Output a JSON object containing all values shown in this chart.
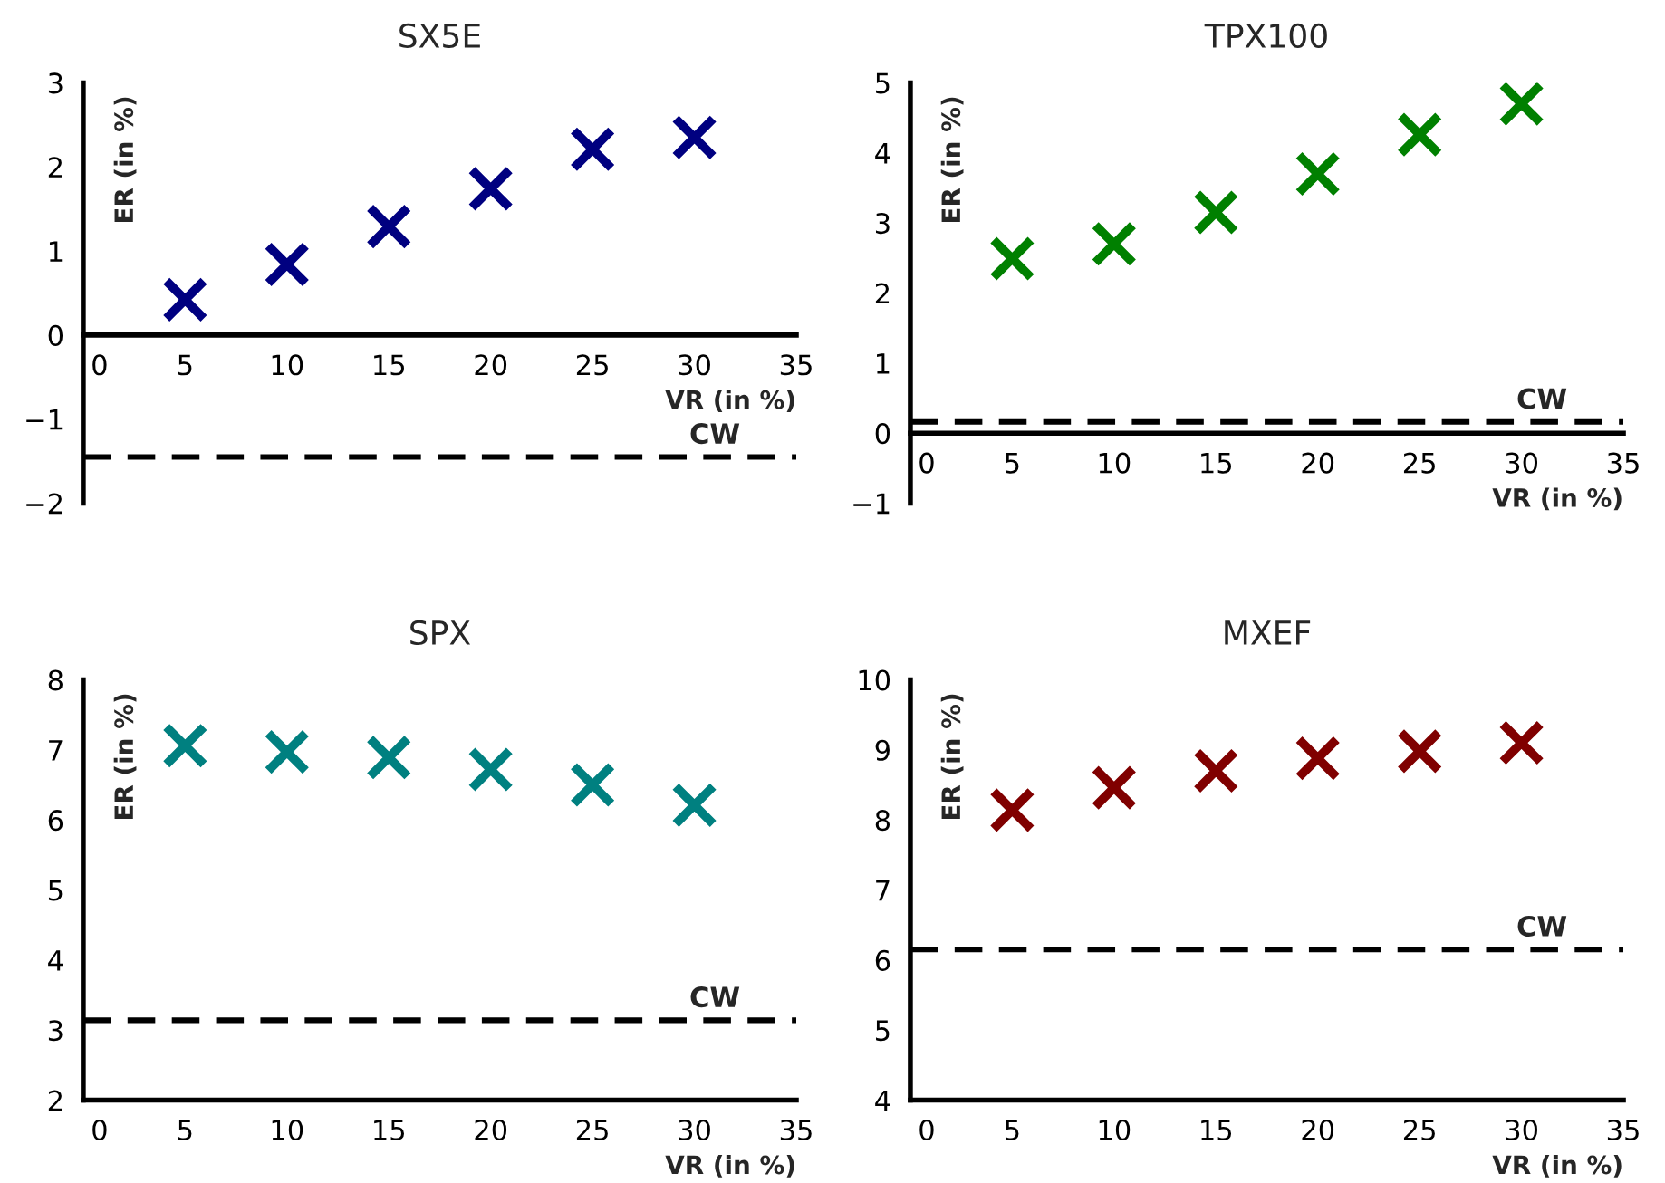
{
  "chart_data": [
    {
      "type": "scatter",
      "title": "SX5E",
      "xlabel": "VR (in %)",
      "ylabel": "ER (in %)",
      "x": [
        5,
        10,
        15,
        20,
        25,
        30
      ],
      "marker": "cross",
      "grid": false,
      "series": [
        {
          "color": "#000080",
          "values": [
            0.42,
            0.84,
            1.29,
            1.74,
            2.21,
            2.35
          ]
        }
      ],
      "xlim": [
        0,
        35
      ],
      "xticks": [
        0,
        5,
        10,
        15,
        20,
        25,
        30,
        35
      ],
      "ylim": [
        -2,
        3
      ],
      "yticks": [
        -2,
        -1,
        0,
        1,
        2,
        3
      ],
      "ref_lines": [
        {
          "axis": "y",
          "value": -1.45,
          "label": "CW",
          "color": "#000000",
          "line_style": "dashed"
        }
      ]
    },
    {
      "type": "scatter",
      "title": "TPX100",
      "xlabel": "VR (in %)",
      "ylabel": "ER (in %)",
      "x": [
        5,
        10,
        15,
        20,
        25,
        30
      ],
      "marker": "cross",
      "grid": false,
      "series": [
        {
          "color": "#008000",
          "values": [
            2.49,
            2.7,
            3.15,
            3.7,
            4.26,
            4.7
          ]
        }
      ],
      "xlim": [
        0,
        35
      ],
      "xticks": [
        0,
        5,
        10,
        15,
        20,
        25,
        30,
        35
      ],
      "ylim": [
        -1,
        5
      ],
      "yticks": [
        -1,
        0,
        1,
        2,
        3,
        4,
        5
      ],
      "ref_lines": [
        {
          "axis": "y",
          "value": 0.16,
          "label": "CW",
          "color": "#000000",
          "line_style": "dashed"
        }
      ]
    },
    {
      "type": "scatter",
      "title": "SPX",
      "xlabel": "VR (in %)",
      "ylabel": "ER (in %)",
      "x": [
        5,
        10,
        15,
        20,
        25,
        30
      ],
      "marker": "cross",
      "grid": false,
      "series": [
        {
          "color": "#008080",
          "values": [
            7.06,
            6.97,
            6.89,
            6.72,
            6.5,
            6.21
          ]
        }
      ],
      "xlim": [
        0,
        35
      ],
      "xticks": [
        0,
        5,
        10,
        15,
        20,
        25,
        30,
        35
      ],
      "ylim": [
        2,
        8
      ],
      "yticks": [
        2,
        3,
        4,
        5,
        6,
        7,
        8
      ],
      "ref_lines": [
        {
          "axis": "y",
          "value": 3.14,
          "label": "CW",
          "color": "#000000",
          "line_style": "dashed"
        }
      ]
    },
    {
      "type": "scatter",
      "title": "MXEF",
      "xlabel": "VR (in %)",
      "ylabel": "ER (in %)",
      "x": [
        5,
        10,
        15,
        20,
        25,
        30
      ],
      "marker": "cross",
      "grid": false,
      "series": [
        {
          "color": "#800000",
          "values": [
            8.14,
            8.46,
            8.7,
            8.88,
            8.98,
            9.1
          ]
        }
      ],
      "xlim": [
        0,
        35
      ],
      "xticks": [
        0,
        5,
        10,
        15,
        20,
        25,
        30,
        35
      ],
      "ylim": [
        4,
        10
      ],
      "yticks": [
        4,
        5,
        6,
        7,
        8,
        9,
        10
      ],
      "ref_lines": [
        {
          "axis": "y",
          "value": 6.15,
          "label": "CW",
          "color": "#000000",
          "line_style": "dashed"
        }
      ]
    }
  ]
}
